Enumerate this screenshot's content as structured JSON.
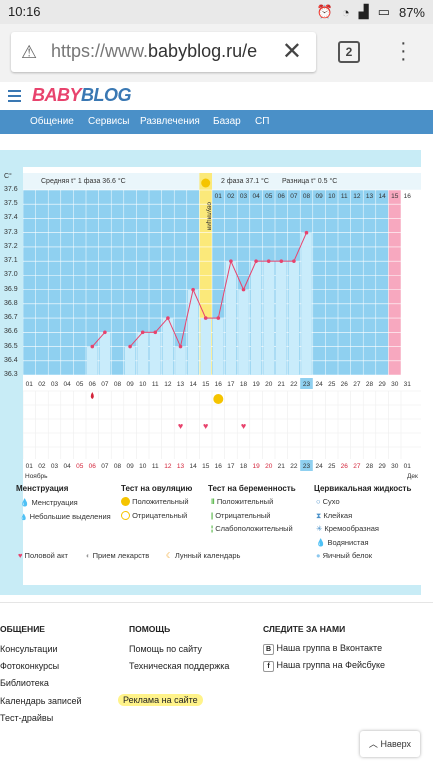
{
  "status": {
    "time": "10:16",
    "battery": "87%"
  },
  "browser": {
    "url_prefix": "https://www.",
    "url_host": "babyblog.ru/e",
    "tab_count": "2"
  },
  "site": {
    "logo": "BABYBLOG",
    "nav": [
      "Общение",
      "Сервисы",
      "Развлечения",
      "Базар",
      "СП"
    ]
  },
  "chart": {
    "unit": "C°",
    "phase1": "Средняя t° 1 фаза 36.6 °C",
    "phase2": "2 фаза 37.1 °C",
    "diff": "Разница t° 0.5 °C",
    "ovulation": "овуляция",
    "month_label": "Ноябрь",
    "next_month_label": "Дек",
    "yticks": [
      "37.6",
      "37.5",
      "37.4",
      "37.3",
      "37.2",
      "37.1",
      "37.0",
      "36.9",
      "36.8",
      "36.7",
      "36.6",
      "36.5",
      "36.4",
      "36.3"
    ],
    "top_days": [
      "01",
      "02",
      "03",
      "04",
      "05",
      "06",
      "07",
      "08",
      "09",
      "10",
      "11",
      "12",
      "13",
      "14",
      "15",
      "16"
    ],
    "bottom_days": [
      "01",
      "02",
      "03",
      "04",
      "05",
      "06",
      "07",
      "08",
      "09",
      "10",
      "11",
      "12",
      "13",
      "14",
      "15",
      "16",
      "17",
      "18",
      "19",
      "20",
      "21",
      "22",
      "23",
      "24",
      "25",
      "26",
      "27",
      "28",
      "29",
      "30",
      "31"
    ],
    "bottom_days2": [
      "01",
      "02",
      "03",
      "04",
      "05",
      "06",
      "07",
      "08",
      "09",
      "10",
      "11",
      "12",
      "13",
      "14",
      "15",
      "16",
      "17",
      "18",
      "19",
      "20",
      "21",
      "22",
      "23",
      "24",
      "25",
      "26",
      "27",
      "28",
      "29",
      "30",
      "01"
    ]
  },
  "chart_data": {
    "type": "line",
    "title": "",
    "x": [
      6,
      7,
      8,
      9,
      10,
      11,
      12,
      13,
      14,
      15,
      16,
      17,
      18,
      19,
      20,
      21,
      22,
      23
    ],
    "values": [
      36.5,
      36.6,
      null,
      36.5,
      36.6,
      36.6,
      36.7,
      36.5,
      36.9,
      36.7,
      36.7,
      37.1,
      36.9,
      37.1,
      37.1,
      37.1,
      37.1,
      37.3
    ],
    "ylim": [
      36.3,
      37.6
    ],
    "xlabel": "",
    "ylabel": "C°"
  },
  "legend": {
    "menstr_h": "Менструация",
    "menstr_1": "Менструация",
    "menstr_2": "Небольшие выделения",
    "ovul_h": "Тест на овуляцию",
    "ovul_1": "Положительный",
    "ovul_2": "Отрицательный",
    "preg_h": "Тест на беременность",
    "preg_1": "Положительный",
    "preg_2": "Отрицательный",
    "preg_3": "Слабоположительный",
    "cerv_h": "Цервикальная жидкость",
    "cerv_1": "Сухо",
    "cerv_2": "Клейкая",
    "cerv_3": "Кремообразная",
    "cerv_4": "Водянистая",
    "cerv_5": "Яичный белок",
    "sex": "Половой акт",
    "meds": "Прием лекарств",
    "lunar": "Лунный календарь"
  },
  "footer": {
    "col1_h": "ОБЩЕНИЕ",
    "col1": [
      "Консультации",
      "Фотоконкурсы",
      "Библиотека",
      "Календарь записей",
      "Тест-драйвы"
    ],
    "col2_h": "ПОМОЩЬ",
    "col2": [
      "Помощь по сайту",
      "Техническая поддержка",
      "Реклама на сайте"
    ],
    "col3_h": "СЛЕДИТЕ ЗА НАМИ",
    "col3": [
      "Наша группа в Вконтакте",
      "Наша группа на Фейсбуке"
    ],
    "back": "Наверх"
  }
}
